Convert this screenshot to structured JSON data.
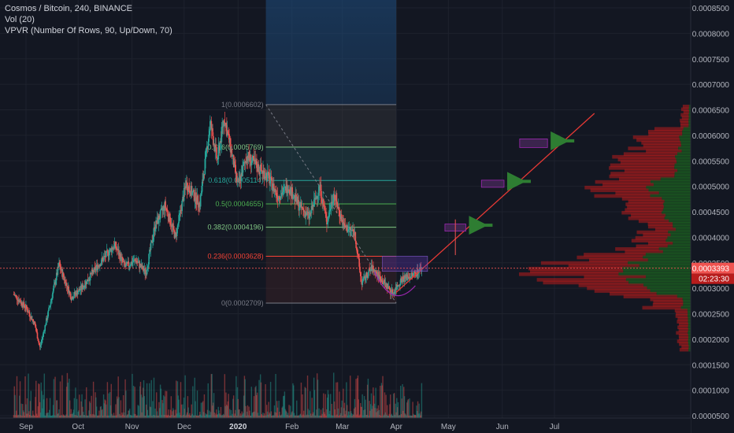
{
  "legend": {
    "symbol_line": "Cosmos / Bitcoin, 240, BINANCE",
    "vol_line": "Vol (20)",
    "vpvr_line": "VPVR (Number Of Rows, 90, Up/Down, 70)"
  },
  "colors": {
    "background": "#131722",
    "up": "#26a69a",
    "down": "#ef5350",
    "trendline": "#e53935",
    "arrow": "#2e7d32",
    "box_fill": "#4a2a5c",
    "box_border": "#9c27b0",
    "price_label": "#ef5350"
  },
  "chart_data": {
    "type": "candlestick",
    "x_tick_labels": [
      "Sep",
      "Oct",
      "Nov",
      "Dec",
      "2020",
      "Feb",
      "Mar",
      "Apr",
      "May",
      "Jun",
      "Jul"
    ],
    "y_tick_labels": [
      "0.0008500",
      "0.0008000",
      "0.0007500",
      "0.0007000",
      "0.0006500",
      "0.0006000",
      "0.0005500",
      "0.0005000",
      "0.0004500",
      "0.0004000",
      "0.0003500",
      "0.0003000",
      "0.0002500",
      "0.0002000",
      "0.0001500",
      "0.0001000",
      "0.0000500"
    ],
    "ylim": [
      4.3e-05,
      0.00087
    ],
    "current_price": "0.0003393",
    "countdown": "02:23:30",
    "price_path": [
      {
        "date": "2019-08-25",
        "price": 0.000288
      },
      {
        "date": "2019-09-01",
        "price": 0.000262
      },
      {
        "date": "2019-09-06",
        "price": 0.00023
      },
      {
        "date": "2019-09-09",
        "price": 0.000183
      },
      {
        "date": "2019-09-14",
        "price": 0.000255
      },
      {
        "date": "2019-09-20",
        "price": 0.000346
      },
      {
        "date": "2019-09-27",
        "price": 0.000282
      },
      {
        "date": "2019-10-03",
        "price": 0.0003
      },
      {
        "date": "2019-10-12",
        "price": 0.000343
      },
      {
        "date": "2019-10-22",
        "price": 0.000385
      },
      {
        "date": "2019-10-28",
        "price": 0.000342
      },
      {
        "date": "2019-11-03",
        "price": 0.000355
      },
      {
        "date": "2019-11-09",
        "price": 0.00033
      },
      {
        "date": "2019-11-14",
        "price": 0.00042
      },
      {
        "date": "2019-11-20",
        "price": 0.000463
      },
      {
        "date": "2019-11-26",
        "price": 0.0004
      },
      {
        "date": "2019-12-02",
        "price": 0.000505
      },
      {
        "date": "2019-12-10",
        "price": 0.000465
      },
      {
        "date": "2019-12-16",
        "price": 0.000625
      },
      {
        "date": "2019-12-20",
        "price": 0.00055
      },
      {
        "date": "2019-12-24",
        "price": 0.000635
      },
      {
        "date": "2019-12-28",
        "price": 0.00057
      },
      {
        "date": "2020-01-01",
        "price": 0.0005
      },
      {
        "date": "2020-01-06",
        "price": 0.00056
      },
      {
        "date": "2020-01-12",
        "price": 0.000538
      },
      {
        "date": "2020-01-18",
        "price": 0.00052
      },
      {
        "date": "2020-01-24",
        "price": 0.00048
      },
      {
        "date": "2020-01-30",
        "price": 0.0005
      },
      {
        "date": "2020-02-05",
        "price": 0.000462
      },
      {
        "date": "2020-02-11",
        "price": 0.00044
      },
      {
        "date": "2020-02-17",
        "price": 0.0005
      },
      {
        "date": "2020-02-21",
        "price": 0.00043
      },
      {
        "date": "2020-02-25",
        "price": 0.000485
      },
      {
        "date": "2020-03-02",
        "price": 0.00042
      },
      {
        "date": "2020-03-08",
        "price": 0.00041
      },
      {
        "date": "2020-03-12",
        "price": 0.00031
      },
      {
        "date": "2020-03-18",
        "price": 0.00034
      },
      {
        "date": "2020-03-24",
        "price": 0.000315
      },
      {
        "date": "2020-03-30",
        "price": 0.00029
      },
      {
        "date": "2020-04-04",
        "price": 0.000318
      },
      {
        "date": "2020-04-10",
        "price": 0.000325
      },
      {
        "date": "2020-04-16",
        "price": 0.00034
      }
    ],
    "fibonacci": {
      "levels": [
        {
          "label": "1(0.0006602)",
          "price": 0.0006602,
          "color": "#787b86"
        },
        {
          "label": "0.786(0.0005769)",
          "price": 0.0005769,
          "color": "#81c784"
        },
        {
          "label": "0.618(0.0005114)",
          "price": 0.0005114,
          "color": "#26a69a"
        },
        {
          "label": "0.5(0.0004655)",
          "price": 0.0004655,
          "color": "#4caf50"
        },
        {
          "label": "0.382(0.0004196)",
          "price": 0.0004196,
          "color": "#81c784"
        },
        {
          "label": "0.236(0.0003628)",
          "price": 0.0003628,
          "color": "#f44336"
        },
        {
          "label": "0(0.0002709)",
          "price": 0.0002709,
          "color": "#787b86"
        }
      ],
      "start_date": "2020-01-17",
      "end_date": "2020-04-01"
    },
    "projection_zone": {
      "start_date": "2020-01-17",
      "end_date": "2020-04-01",
      "top": 0.00087,
      "bottom": 0.0006602
    },
    "trendline": [
      {
        "date": "2020-04-01",
        "price": 0.000292
      },
      {
        "date": "2020-07-24",
        "price": 0.000643
      }
    ],
    "target_boxes": [
      {
        "start_date": "2020-04-29",
        "end_date": "2020-05-11",
        "high": 0.000426,
        "low": 0.000412
      },
      {
        "start_date": "2020-05-20",
        "end_date": "2020-06-02",
        "high": 0.000512,
        "low": 0.000498
      },
      {
        "start_date": "2020-06-11",
        "end_date": "2020-06-27",
        "high": 0.000593,
        "low": 0.000576
      }
    ],
    "up_arrows_note": "green arrows pointing left toward each target box",
    "vpvr_profile": "volume-by-price histogram on right side"
  }
}
